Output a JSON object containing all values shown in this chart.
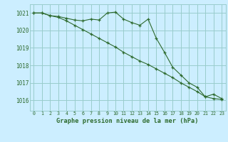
{
  "background_color": "#cceeff",
  "grid_color": "#99cccc",
  "line_color": "#2d6a2d",
  "title": "Graphe pression niveau de la mer (hPa)",
  "xlim": [
    -0.5,
    23.5
  ],
  "ylim": [
    1015.4,
    1021.5
  ],
  "yticks": [
    1016,
    1017,
    1018,
    1019,
    1020,
    1021
  ],
  "xticks": [
    0,
    1,
    2,
    3,
    4,
    5,
    6,
    7,
    8,
    9,
    10,
    11,
    12,
    13,
    14,
    15,
    16,
    17,
    18,
    19,
    20,
    21,
    22,
    23
  ],
  "line1_x": [
    0,
    1,
    2,
    3,
    4,
    5,
    6,
    7,
    8,
    9,
    10,
    11,
    12,
    13,
    14,
    15,
    16,
    17,
    18,
    19,
    20,
    21,
    22,
    23
  ],
  "line1_y": [
    1021.0,
    1021.0,
    1020.85,
    1020.8,
    1020.7,
    1020.6,
    1020.55,
    1020.65,
    1020.6,
    1021.0,
    1021.05,
    1020.65,
    1020.45,
    1020.3,
    1020.65,
    1019.55,
    1018.75,
    1017.9,
    1017.45,
    1017.0,
    1016.75,
    1016.2,
    1016.35,
    1016.1
  ],
  "line2_x": [
    0,
    1,
    2,
    3,
    4,
    5,
    6,
    7,
    8,
    9,
    10,
    11,
    12,
    13,
    14,
    15,
    16,
    17,
    18,
    19,
    20,
    21,
    22,
    23
  ],
  "line2_y": [
    1021.0,
    1021.0,
    1020.85,
    1020.75,
    1020.55,
    1020.3,
    1020.05,
    1019.8,
    1019.55,
    1019.3,
    1019.05,
    1018.75,
    1018.5,
    1018.25,
    1018.05,
    1017.8,
    1017.55,
    1017.3,
    1017.0,
    1016.75,
    1016.5,
    1016.2,
    1016.1,
    1016.05
  ]
}
